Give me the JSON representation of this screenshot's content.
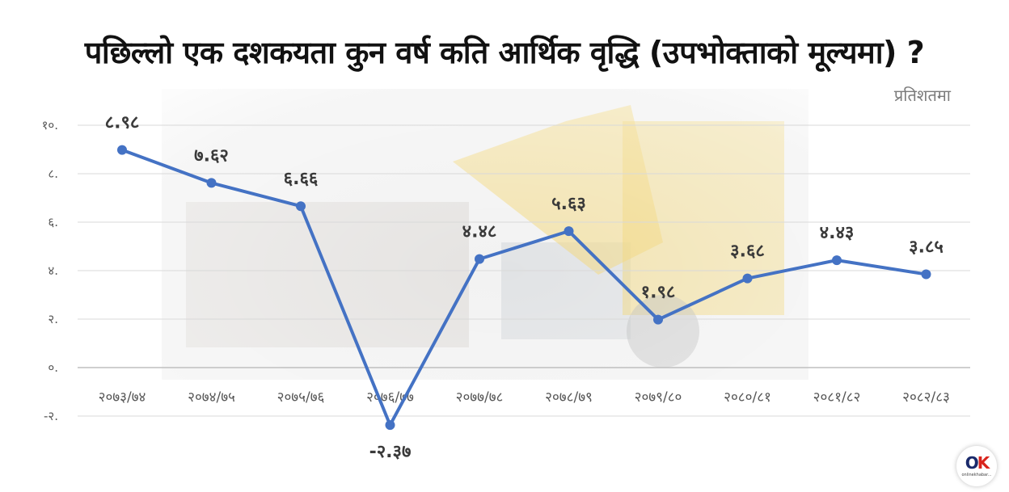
{
  "title": "पछिल्लो एक दशकयता कुन वर्ष कति आर्थिक वृद्धि (उपभोक्ताको मूल्यमा) ?",
  "unit_label": "प्रतिशतमा",
  "logo": {
    "mark_o": "O",
    "mark_k": "K",
    "text": "onlinekhabar..."
  },
  "colors": {
    "line": "#4472c4",
    "point": "#4472c4",
    "grid": "#d9d9d9",
    "text": "#333333"
  },
  "chart_data": {
    "type": "line",
    "title": "पछिल्लो एक दशकयता कुन वर्ष कति आर्थिक वृद्धि (उपभोक्ताको मूल्यमा) ?",
    "ylabel": "प्रतिशतमा",
    "categories": [
      "२०७३/७४",
      "२०७४/७५",
      "२०७५/७६",
      "२०७६/७७",
      "२०७७/७८",
      "२०७८/७९",
      "२०७९/८०",
      "२०८०/८१",
      "२०८१/८२",
      "२०८२/८३"
    ],
    "values": [
      8.98,
      7.62,
      6.66,
      -2.37,
      4.48,
      5.63,
      1.98,
      3.68,
      4.43,
      3.85
    ],
    "data_labels": [
      "८.९८",
      "७.६२",
      "६.६६",
      "-२.३७",
      "४.४८",
      "५.६३",
      "१.९८",
      "३.६८",
      "४.४३",
      "३.८५"
    ],
    "yticks": [
      10,
      8,
      6,
      4,
      2,
      0,
      -2
    ],
    "ytick_labels": [
      "१०.",
      "८.",
      "६.",
      "४.",
      "२.",
      "०.",
      "-२."
    ],
    "ylim": [
      -2,
      10
    ],
    "grid": true,
    "legend": "none"
  }
}
